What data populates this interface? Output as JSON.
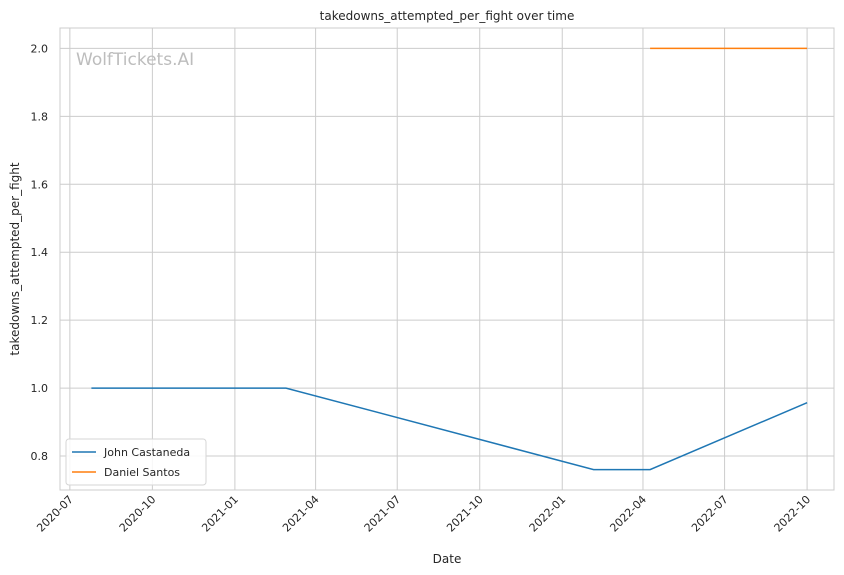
{
  "chart_data": {
    "type": "line",
    "title": "takedowns_attempted_per_fight over time",
    "xlabel": "Date",
    "ylabel": "takedowns_attempted_per_fight",
    "watermark": "WolfTickets.AI",
    "x_ticks": [
      "2020-07",
      "2020-10",
      "2021-01",
      "2021-04",
      "2021-07",
      "2021-10",
      "2022-01",
      "2022-04",
      "2022-07",
      "2022-10"
    ],
    "y_ticks": [
      "0.8",
      "1.0",
      "1.2",
      "1.4",
      "1.6",
      "1.8",
      "2.0"
    ],
    "xlim": [
      "2020-06-20",
      "2022-10-31"
    ],
    "ylim": [
      0.7,
      2.06
    ],
    "grid": true,
    "legend_position": "bottom-left",
    "series": [
      {
        "name": "John Castaneda",
        "color": "#1f77b4",
        "points": [
          {
            "x": "2020-07-25",
            "y": 1.0
          },
          {
            "x": "2021-02-27",
            "y": 1.0
          },
          {
            "x": "2022-02-05",
            "y": 0.76
          },
          {
            "x": "2022-04-09",
            "y": 0.76
          },
          {
            "x": "2022-10-01",
            "y": 0.957
          }
        ]
      },
      {
        "name": "Daniel Santos",
        "color": "#ff7f0e",
        "points": [
          {
            "x": "2022-04-09",
            "y": 2.0
          },
          {
            "x": "2022-10-01",
            "y": 2.0
          }
        ]
      }
    ]
  }
}
